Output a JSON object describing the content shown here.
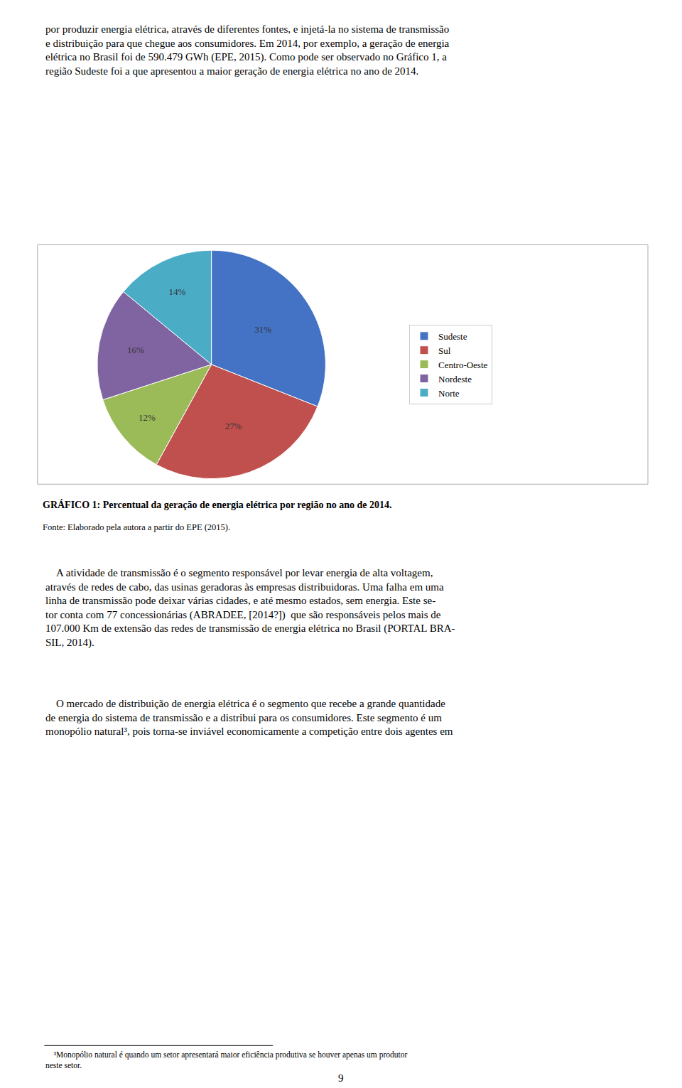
{
  "chart_data": {
    "type": "pie",
    "title": "GRÁFICO 1: Percentual da geração de energia elétrica por região no ano de 2014.",
    "categories": [
      "Sudeste",
      "Sul",
      "Centro-Oeste",
      "Nordeste",
      "Norte"
    ],
    "values": [
      31,
      27,
      12,
      16,
      14
    ],
    "value_labels": [
      "31%",
      "27%",
      "12%",
      "16%",
      "14%"
    ],
    "colors": [
      "#4472C4",
      "#C0504D",
      "#9BBB59",
      "#8064A2",
      "#4BACC6"
    ],
    "data_labels": true,
    "legend": "right",
    "annotations": [
      "por produzir energia elétrica, através de diferentes fontes, e injetá-la no sistema de transmissão\ne distribuição para que chegue aos consumidores. Em 2014, por exemplo, a geração de energia\nelétrica no Brasil foi de 590.479 GWh (EPE, 2015). Como pode ser observado no Gráfico 1, a\nregião Sudeste foi a que apresentou a maior geração de energia elétrica no ano de 2014.",
      "Fonte: Elaborado pela autora a partir do EPE (2015).",
      "    A atividade de transmissão é o segmento responsável por levar energia de alta voltagem,\natravés de redes de cabo, das usinas geradoras às empresas distribuidoras. Uma falha em uma\nlinha de transmissão pode deixar várias cidades, e até mesmo estados, sem energia. Este se-\ntor conta com 77 concessionárias (ABRADEE, [2014?])  que são responsáveis pelos mais de\n107.000 Km de extensão das redes de transmissão de energia elétrica no Brasil (PORTAL BRA-\nSIL, 2014).",
      "    O mercado de distribuição de energia elétrica é o segmento que recebe a grande quantidade\nde energia do sistema de transmissão e a distribui para os consumidores. Este segmento é um\nmonopólio natural³, pois torna-se inviável economicamente a competição entre dois agentes em",
      "    ³Monopólio natural é quando um setor apresentará maior eficiência produtiva se houver apenas um produtor\nneste setor.",
      "9"
    ]
  }
}
